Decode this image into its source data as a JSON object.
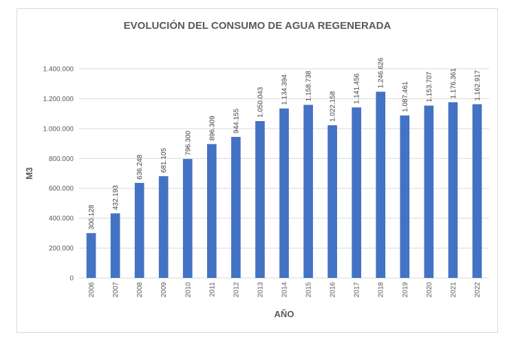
{
  "chart_data": {
    "type": "bar",
    "title": "EVOLUCIÓN DEL CONSUMO DE AGUA REGENERADA",
    "xlabel": "AÑO",
    "ylabel": "M3",
    "categories": [
      "2006",
      "2007",
      "2008",
      "2009",
      "2010",
      "2011",
      "2012",
      "2013",
      "2014",
      "2015",
      "2016",
      "2017",
      "2018",
      "2019",
      "2020",
      "2021",
      "2022"
    ],
    "values": [
      300128,
      432193,
      636248,
      681105,
      796300,
      896309,
      944155,
      1050043,
      1134394,
      1158738,
      1022158,
      1141456,
      1246626,
      1087461,
      1153707,
      1176361,
      1162917
    ],
    "data_labels": [
      "300.128",
      "432.193",
      "636.248",
      "681.105",
      "796.300",
      "896.309",
      "944.155",
      "1.050.043",
      "1.134.394",
      "1.158.738",
      "1.022.158",
      "1.141.456",
      "1.246.626",
      "1.087.461",
      "1.153.707",
      "1.176.361",
      "1.162.917"
    ],
    "ylim": [
      0,
      1400000
    ],
    "y_ticks": [
      {
        "value": 0,
        "label": "0"
      },
      {
        "value": 200000,
        "label": "200.000"
      },
      {
        "value": 400000,
        "label": "400.000"
      },
      {
        "value": 600000,
        "label": "600.000"
      },
      {
        "value": 800000,
        "label": "800.000"
      },
      {
        "value": 1000000,
        "label": "1.000.000"
      },
      {
        "value": 1200000,
        "label": "1.200.000"
      },
      {
        "value": 1400000,
        "label": "1.400.000"
      }
    ],
    "grid": true,
    "legend": "none",
    "bar_color": "#4472c4",
    "grid_color": "#d9d9d9"
  }
}
